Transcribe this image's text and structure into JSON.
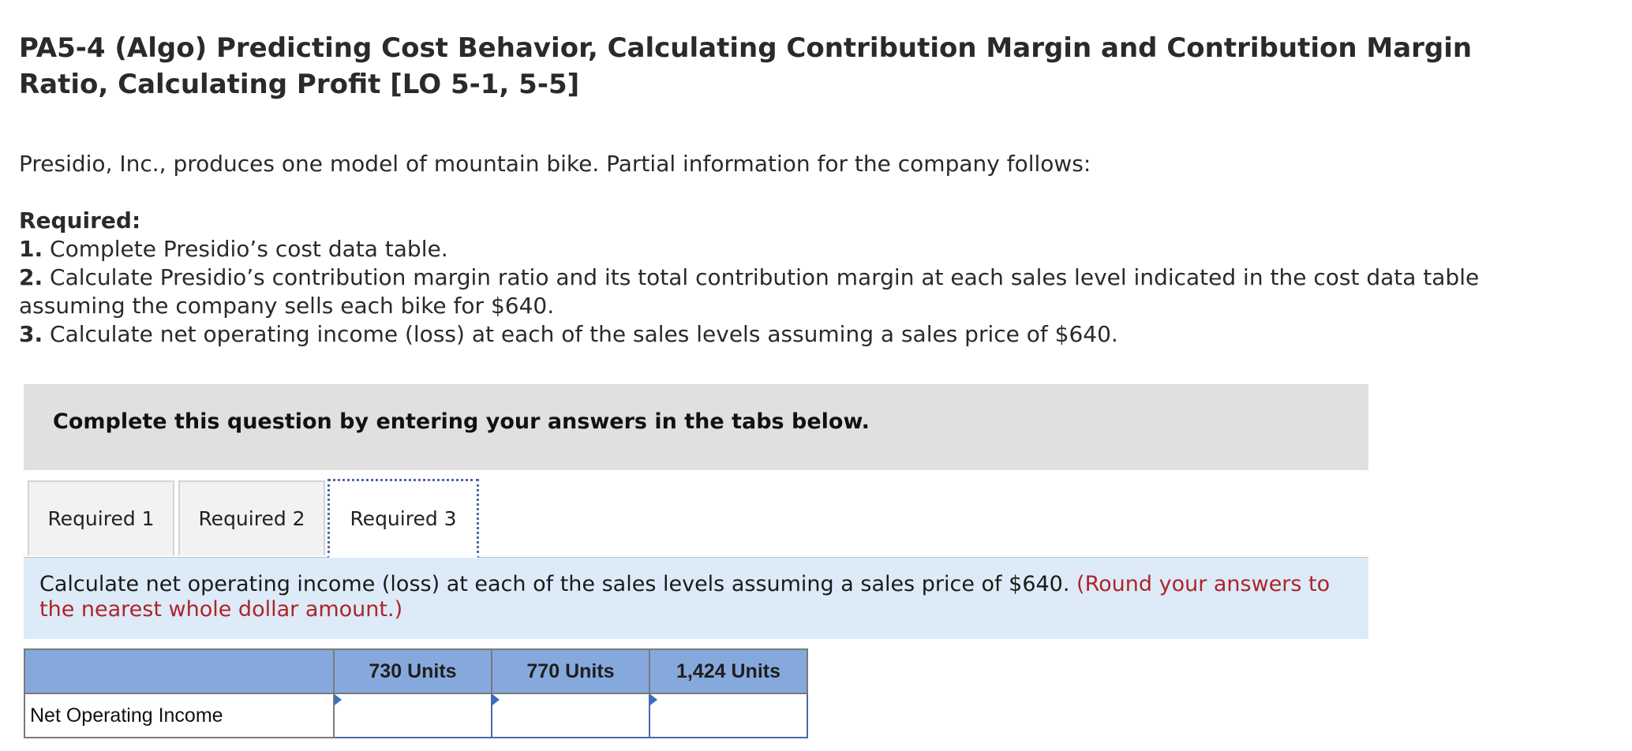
{
  "title": "PA5-4 (Algo) Predicting Cost Behavior, Calculating Contribution Margin and Contribution Margin Ratio, Calculating Profit [LO 5-1, 5-5]",
  "intro": "Presidio, Inc., produces one model of mountain bike. Partial information for the company follows:",
  "required": {
    "heading": "Required:",
    "items": [
      {
        "num": "1.",
        "text": " Complete Presidio’s cost data table."
      },
      {
        "num": "2.",
        "text": " Calculate Presidio’s contribution margin ratio and its total contribution margin at each sales level indicated in the cost data table assuming the company sells each bike for $640."
      },
      {
        "num": "3.",
        "text": " Calculate net operating income (loss) at each of the sales levels assuming a sales price of $640."
      }
    ]
  },
  "banner": "Complete this question by entering your answers in the tabs below.",
  "tabs": [
    {
      "label": "Required 1",
      "active": false
    },
    {
      "label": "Required 2",
      "active": false
    },
    {
      "label": "Required 3",
      "active": true
    }
  ],
  "instruction": {
    "text": "Calculate net operating income (loss) at each of the sales levels assuming a sales price of $640.",
    "note": "(Round your answers to the nearest whole dollar amount.)"
  },
  "table": {
    "headers": [
      "",
      "730 Units",
      "770 Units",
      "1,424 Units"
    ],
    "rows": [
      {
        "label": "Net Operating Income",
        "values": [
          "",
          "",
          ""
        ]
      }
    ]
  },
  "colors": {
    "header_blue": "#86a9dd",
    "instruction_bg": "#dcebf7",
    "note_red": "#b0232a",
    "banner_gray": "#e0e0e0"
  }
}
